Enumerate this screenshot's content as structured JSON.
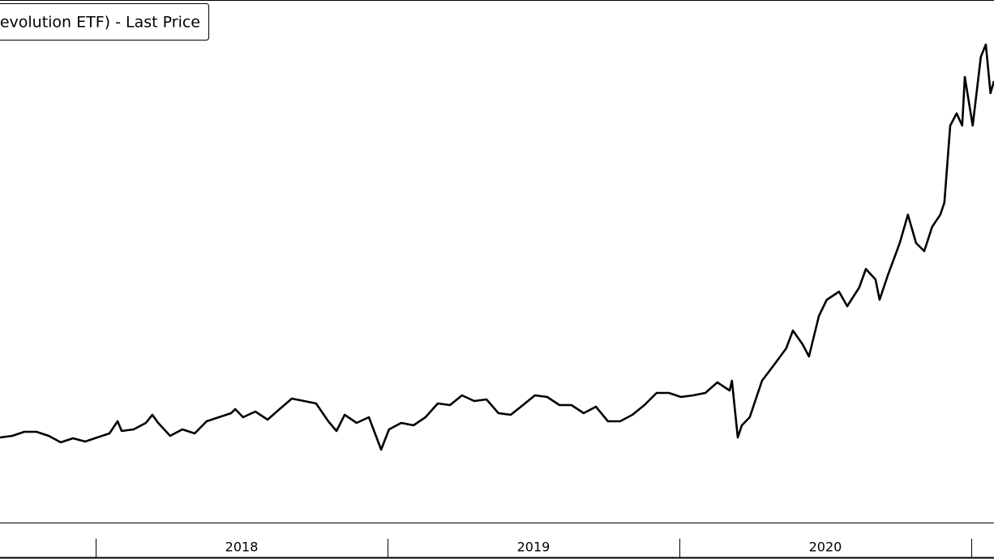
{
  "chart_data": {
    "type": "line",
    "legend_label": "evolution ETF) - Last Price",
    "x": [
      2017.672,
      2017.714,
      2017.755,
      2017.797,
      2017.839,
      2017.88,
      2017.922,
      2017.964,
      2018.005,
      2018.047,
      2018.075,
      2018.089,
      2018.13,
      2018.172,
      2018.194,
      2018.214,
      2018.255,
      2018.297,
      2018.339,
      2018.38,
      2018.422,
      2018.464,
      2018.478,
      2018.505,
      2018.547,
      2018.589,
      2018.63,
      2018.672,
      2018.714,
      2018.755,
      2018.797,
      2018.825,
      2018.853,
      2018.894,
      2018.936,
      2018.978,
      2019.005,
      2019.047,
      2019.089,
      2019.13,
      2019.172,
      2019.214,
      2019.255,
      2019.297,
      2019.339,
      2019.38,
      2019.422,
      2019.464,
      2019.505,
      2019.547,
      2019.589,
      2019.63,
      2019.672,
      2019.714,
      2019.755,
      2019.797,
      2019.839,
      2019.88,
      2019.922,
      2019.964,
      2020.005,
      2020.047,
      2020.089,
      2020.13,
      2020.172,
      2020.18,
      2020.2,
      2020.214,
      2020.241,
      2020.283,
      2020.325,
      2020.366,
      2020.389,
      2020.422,
      2020.444,
      2020.478,
      2020.505,
      2020.547,
      2020.575,
      2020.616,
      2020.639,
      2020.672,
      2020.686,
      2020.714,
      2020.755,
      2020.783,
      2020.811,
      2020.839,
      2020.866,
      2020.894,
      2020.908,
      2020.928,
      2020.95,
      2020.969,
      2020.978,
      2021.005,
      2021.033,
      2021.05,
      2021.066,
      2021.078
    ],
    "series": [
      {
        "color": "#000000",
        "values": [
          21,
          21.4,
          22.4,
          22.4,
          21.4,
          19.8,
          20.8,
          20,
          21,
          22,
          25,
          22.6,
          23,
          24.6,
          26.6,
          24.6,
          21.4,
          23,
          22,
          25,
          26,
          27,
          28,
          26,
          27.4,
          25.4,
          28,
          30.6,
          30,
          29.4,
          25,
          22.6,
          26.6,
          24.6,
          26,
          18,
          23,
          24.6,
          24,
          26,
          29.4,
          29,
          31.4,
          30,
          30.4,
          27,
          26.6,
          29,
          31.4,
          31,
          29,
          29,
          27,
          28.6,
          25,
          25,
          26.6,
          29,
          32,
          32,
          31,
          31.4,
          32,
          34.6,
          32.6,
          35,
          21,
          24,
          26,
          35,
          39,
          43,
          47.4,
          44,
          41,
          51,
          55,
          57,
          53.4,
          58,
          62.6,
          60,
          55,
          61,
          69,
          76,
          69,
          67,
          73,
          76,
          79,
          98,
          101,
          98,
          110,
          98,
          115,
          118,
          106,
          109
        ]
      }
    ],
    "xlim": [
      2017.672,
      2021.078
    ],
    "xticks": [
      {
        "value": 2018.5,
        "label": "2018"
      },
      {
        "value": 2019.5,
        "label": "2019"
      },
      {
        "value": 2020.5,
        "label": "2020"
      }
    ],
    "year_separators": [
      2018,
      2019,
      2020,
      2021
    ],
    "ylim": [
      0,
      129
    ]
  }
}
